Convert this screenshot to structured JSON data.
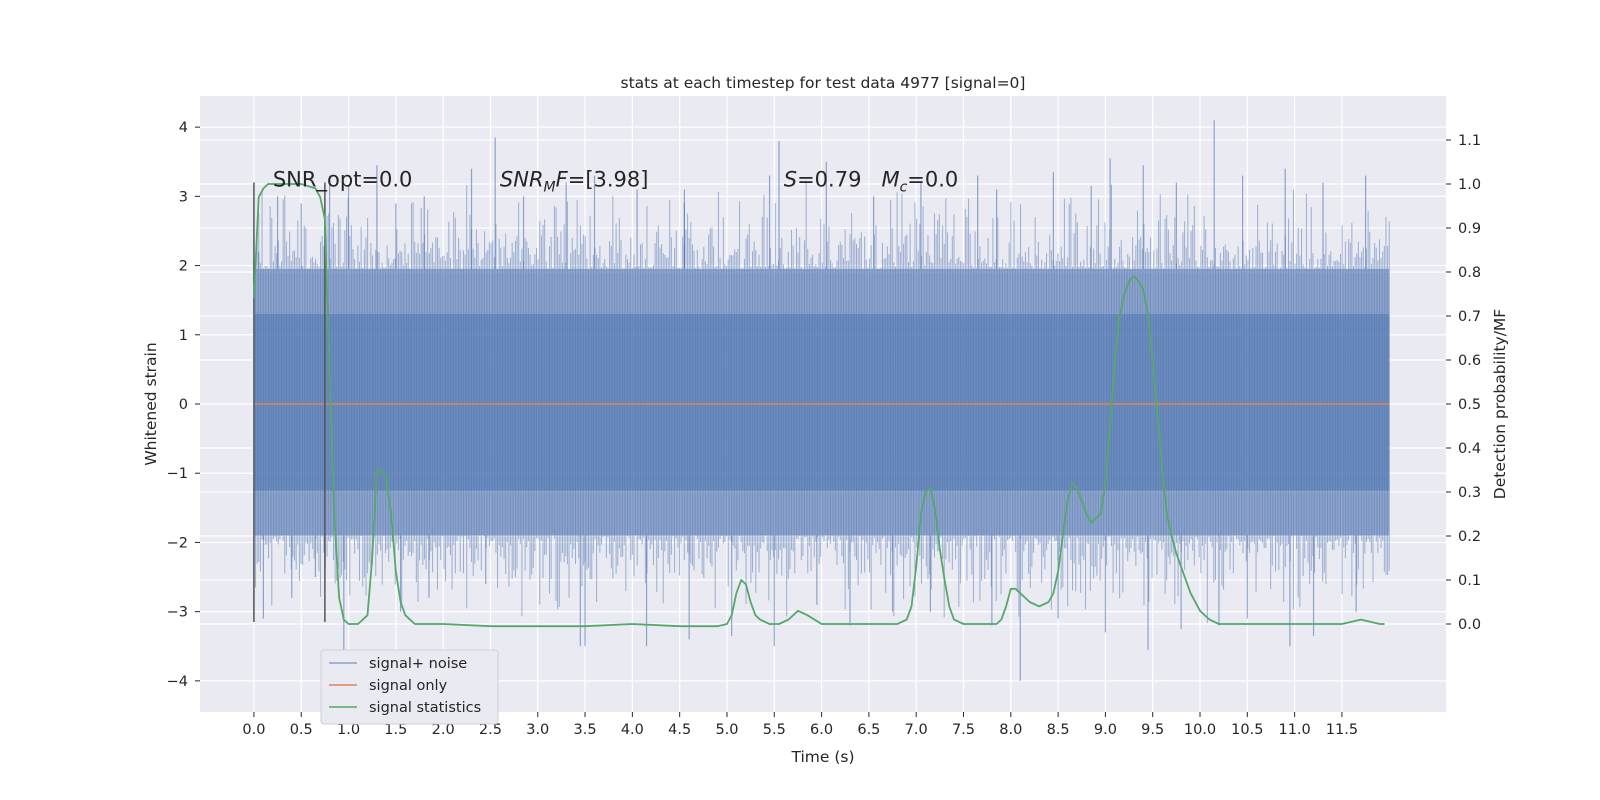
{
  "chart_data": {
    "type": "line",
    "title": "stats at each timestep for test data 4977 [signal=0]",
    "xlabel": "Time (s)",
    "ylabel": "Whitened strain",
    "ylabel_right": "Detection probability/MF",
    "xlim": [
      -0.57,
      12.6
    ],
    "ylim": [
      -4.45,
      4.45
    ],
    "ylim_right": [
      -0.2,
      1.2
    ],
    "x_ticks": [
      0.0,
      0.5,
      1.0,
      1.5,
      2.0,
      2.5,
      3.0,
      3.5,
      4.0,
      4.5,
      5.0,
      5.5,
      6.0,
      6.5,
      7.0,
      7.5,
      8.0,
      8.5,
      9.0,
      9.5,
      10.0,
      10.5,
      11.0,
      11.5
    ],
    "x_tick_labels": [
      "0.0",
      "0.5",
      "1.0",
      "1.5",
      "2.0",
      "2.5",
      "3.0",
      "3.5",
      "4.0",
      "4.5",
      "5.0",
      "5.5",
      "6.0",
      "6.5",
      "7.0",
      "7.5",
      "8.0",
      "8.5",
      "9.0",
      "9.5",
      "10.0",
      "10.5",
      "11.0",
      "11.5"
    ],
    "y_ticks": [
      -4,
      -3,
      -2,
      -1,
      0,
      1,
      2,
      3,
      4
    ],
    "y_tick_labels": [
      "−4",
      "−3",
      "−2",
      "−1",
      "0",
      "1",
      "2",
      "3",
      "4"
    ],
    "y_right_ticks": [
      0.0,
      0.1,
      0.2,
      0.3,
      0.4,
      0.5,
      0.6,
      0.7,
      0.8,
      0.9,
      1.0,
      1.1
    ],
    "y_right_tick_labels": [
      "0.0",
      "0.1",
      "0.2",
      "0.3",
      "0.4",
      "0.5",
      "0.6",
      "0.7",
      "0.8",
      "0.9",
      "1.0",
      "1.1"
    ],
    "grid": true,
    "legend_position": "lower-left",
    "annotations": [
      {
        "x": 0.2,
        "y": 3.3,
        "text": "SNR_opt=0.0",
        "italic": false
      },
      {
        "x": 2.6,
        "y": 3.3,
        "text": "SNR",
        "sub": "M",
        "suffix": "F=[3.98]",
        "italic": true
      },
      {
        "x": 5.6,
        "y": 3.3,
        "text": "S",
        "rest": "=0.79   ",
        "text2": "M",
        "sub": "c",
        "suffix": "=0.0",
        "italic": true
      }
    ],
    "vertical_markers": [
      {
        "x": 0.0,
        "y_range": [
          -3.15,
          3.2
        ],
        "color": "#555555"
      },
      {
        "x": 0.75,
        "y_range": [
          -3.15,
          3.2
        ],
        "color": "#555555"
      }
    ],
    "series": [
      {
        "name": "signal+ noise",
        "color": "#4c72b0",
        "kind": "noise",
        "x_range": [
          0.0,
          12.0
        ],
        "band": {
          "inner_low": -1.9,
          "inner_high": 1.95,
          "core_low": -1.25,
          "core_high": 1.3
        },
        "spikes_up": [
          [
            0.05,
            2.2
          ],
          [
            0.25,
            3.0
          ],
          [
            0.5,
            2.9
          ],
          [
            0.8,
            3.3
          ],
          [
            1.0,
            3.15
          ],
          [
            1.3,
            3.45
          ],
          [
            1.5,
            2.9
          ],
          [
            1.8,
            3.0
          ],
          [
            2.3,
            3.4
          ],
          [
            2.55,
            3.85
          ],
          [
            2.85,
            3.0
          ],
          [
            3.3,
            3.2
          ],
          [
            3.6,
            3.3
          ],
          [
            4.05,
            3.1
          ],
          [
            4.55,
            2.9
          ],
          [
            4.55,
            3.1
          ],
          [
            5.45,
            3.3
          ],
          [
            5.55,
            3.8
          ],
          [
            6.05,
            3.5
          ],
          [
            6.55,
            3.0
          ],
          [
            7.05,
            3.2
          ],
          [
            7.65,
            3.3
          ],
          [
            7.85,
            3.1
          ],
          [
            8.45,
            3.35
          ],
          [
            8.85,
            3.15
          ],
          [
            9.05,
            3.55
          ],
          [
            9.4,
            3.45
          ],
          [
            9.75,
            3.2
          ],
          [
            10.15,
            4.1
          ],
          [
            10.45,
            3.3
          ],
          [
            10.9,
            3.4
          ],
          [
            11.3,
            3.2
          ],
          [
            11.75,
            3.3
          ]
        ],
        "spikes_down": [
          [
            0.0,
            -3.1
          ],
          [
            0.1,
            -3.1
          ],
          [
            0.4,
            -2.8
          ],
          [
            0.65,
            -2.5
          ],
          [
            0.95,
            -3.6
          ],
          [
            1.55,
            -3.0
          ],
          [
            1.85,
            -2.8
          ],
          [
            2.45,
            -2.6
          ],
          [
            3.45,
            -3.5
          ],
          [
            3.5,
            -3.5
          ],
          [
            4.15,
            -3.5
          ],
          [
            4.6,
            -3.4
          ],
          [
            5.05,
            -3.35
          ],
          [
            5.5,
            -3.5
          ],
          [
            5.95,
            -2.9
          ],
          [
            6.3,
            -3.2
          ],
          [
            6.75,
            -3.0
          ],
          [
            7.15,
            -3.0
          ],
          [
            7.8,
            -3.2
          ],
          [
            8.1,
            -4.0
          ],
          [
            8.5,
            -3.1
          ],
          [
            9.0,
            -3.3
          ],
          [
            9.45,
            -3.55
          ],
          [
            9.8,
            -3.25
          ],
          [
            10.2,
            -3.2
          ],
          [
            10.5,
            -3.1
          ],
          [
            10.95,
            -3.5
          ],
          [
            11.2,
            -3.35
          ],
          [
            11.65,
            -3.0
          ]
        ]
      },
      {
        "name": "signal only",
        "color": "#dd8452",
        "x": [
          0.0,
          12.0
        ],
        "y": [
          0.0,
          0.0
        ]
      },
      {
        "name": "signal statistics",
        "color": "#55a868",
        "axis": "right",
        "x": [
          0.0,
          0.05,
          0.1,
          0.15,
          0.25,
          0.35,
          0.5,
          0.65,
          0.7,
          0.75,
          0.8,
          0.85,
          0.9,
          0.95,
          1.0,
          1.05,
          1.1,
          1.2,
          1.25,
          1.3,
          1.35,
          1.4,
          1.45,
          1.5,
          1.55,
          1.6,
          1.7,
          1.8,
          2.0,
          2.5,
          3.0,
          3.5,
          4.0,
          4.5,
          4.9,
          5.0,
          5.05,
          5.1,
          5.15,
          5.2,
          5.25,
          5.3,
          5.35,
          5.45,
          5.55,
          5.65,
          5.75,
          5.85,
          6.0,
          6.5,
          6.8,
          6.9,
          6.95,
          7.0,
          7.05,
          7.1,
          7.15,
          7.2,
          7.25,
          7.3,
          7.35,
          7.4,
          7.5,
          7.7,
          7.85,
          7.9,
          7.95,
          8.0,
          8.05,
          8.1,
          8.2,
          8.3,
          8.4,
          8.45,
          8.5,
          8.55,
          8.6,
          8.65,
          8.7,
          8.75,
          8.8,
          8.85,
          8.9,
          8.95,
          9.0,
          9.05,
          9.1,
          9.15,
          9.2,
          9.25,
          9.3,
          9.35,
          9.4,
          9.45,
          9.5,
          9.55,
          9.6,
          9.65,
          9.7,
          9.75,
          9.8,
          9.85,
          9.9,
          10.0,
          10.1,
          10.2,
          10.3,
          10.5,
          11.0,
          11.2,
          11.5,
          11.7,
          11.8,
          11.9,
          11.95
        ],
        "y": [
          0.74,
          0.97,
          0.99,
          1.0,
          1.0,
          1.0,
          1.0,
          0.99,
          0.97,
          0.92,
          0.55,
          0.25,
          0.06,
          0.01,
          0.0,
          0.0,
          0.0,
          0.02,
          0.15,
          0.35,
          0.35,
          0.33,
          0.25,
          0.12,
          0.05,
          0.02,
          0.0,
          0.0,
          0.0,
          -0.005,
          -0.005,
          -0.005,
          0.0,
          -0.005,
          -0.005,
          0.0,
          0.02,
          0.07,
          0.1,
          0.09,
          0.05,
          0.02,
          0.01,
          0.0,
          0.0,
          0.01,
          0.03,
          0.02,
          0.0,
          0.0,
          0.0,
          0.01,
          0.04,
          0.13,
          0.25,
          0.3,
          0.31,
          0.26,
          0.17,
          0.1,
          0.04,
          0.01,
          0.0,
          0.0,
          0.0,
          0.01,
          0.04,
          0.08,
          0.08,
          0.07,
          0.05,
          0.04,
          0.05,
          0.07,
          0.12,
          0.2,
          0.28,
          0.32,
          0.31,
          0.28,
          0.25,
          0.23,
          0.24,
          0.25,
          0.32,
          0.45,
          0.6,
          0.7,
          0.75,
          0.78,
          0.79,
          0.78,
          0.76,
          0.7,
          0.6,
          0.48,
          0.35,
          0.25,
          0.2,
          0.16,
          0.13,
          0.1,
          0.07,
          0.03,
          0.01,
          0.0,
          0.0,
          0.0,
          0.0,
          0.0,
          0.0,
          0.01,
          0.005,
          0.0,
          0.0
        ]
      }
    ]
  }
}
